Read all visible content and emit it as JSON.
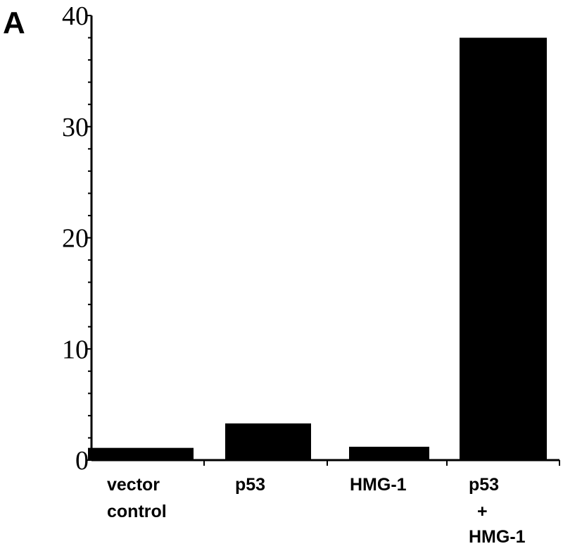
{
  "panel_label": "A",
  "chart_data": {
    "type": "bar",
    "categories": [
      [
        "vector",
        "control"
      ],
      [
        "p53"
      ],
      [
        "HMG-1"
      ],
      [
        "p53",
        "+",
        "HMG-1"
      ]
    ],
    "values": [
      1.1,
      3.3,
      1.2,
      38
    ],
    "ylim": [
      0,
      40
    ],
    "yticks": [
      0,
      10,
      20,
      30,
      40
    ],
    "yminor_step": 2,
    "grid": false,
    "bar_color": "#000000"
  }
}
